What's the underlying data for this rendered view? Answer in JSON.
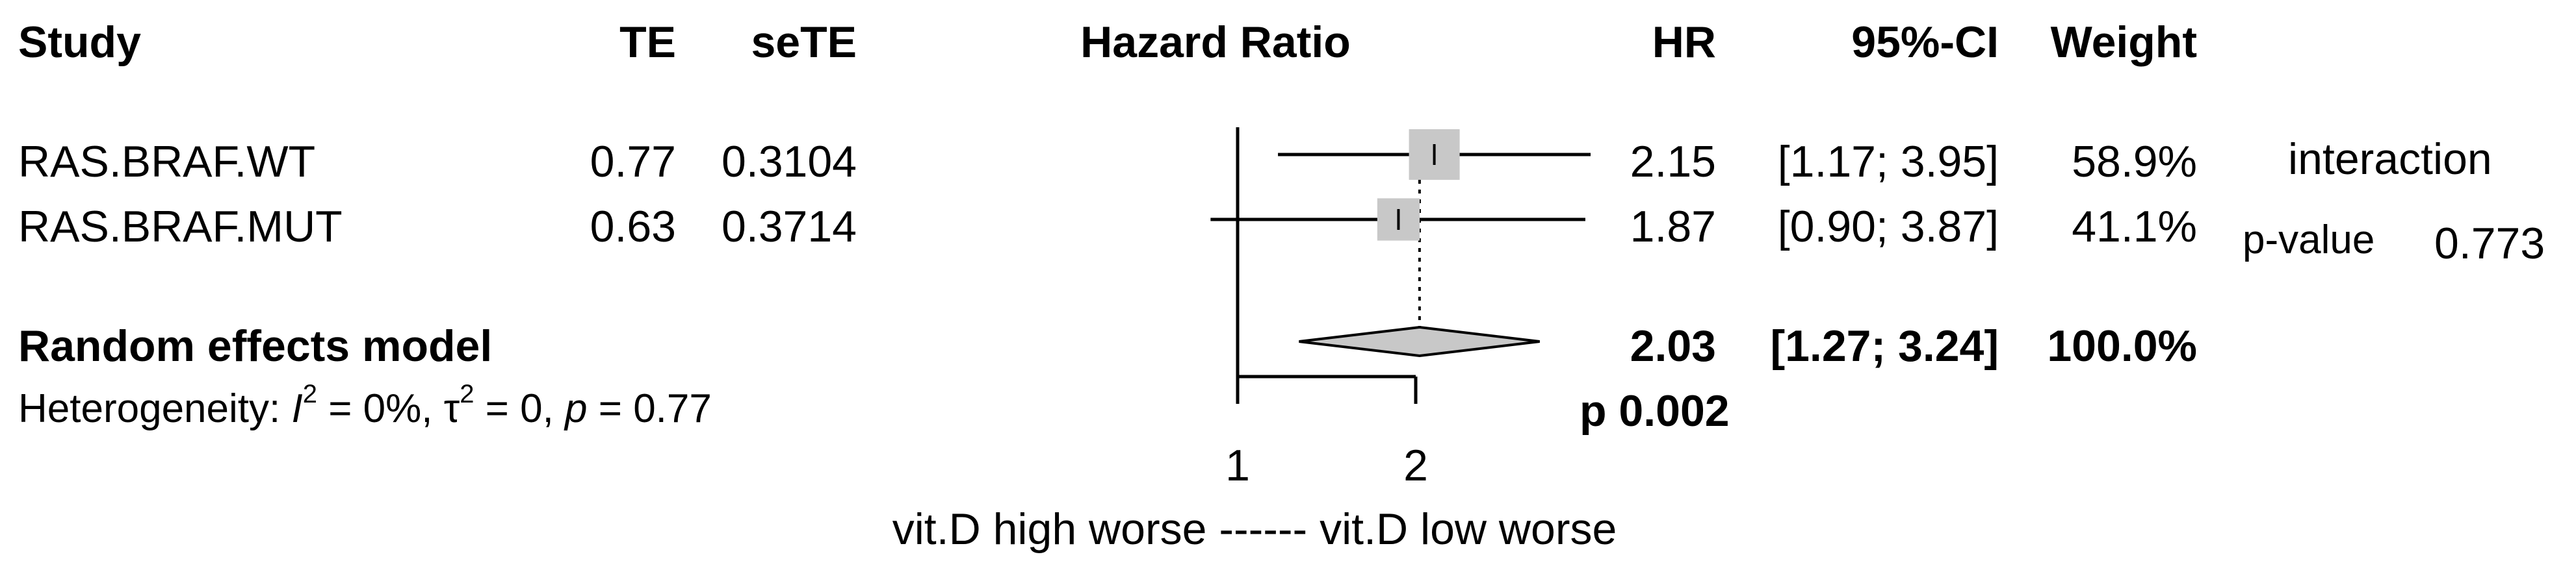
{
  "chart_data": {
    "type": "forest",
    "headers": {
      "study": "Study",
      "te": "TE",
      "sete": "seTE",
      "plot": "Hazard Ratio",
      "hr": "HR",
      "ci": "95%-CI",
      "weight": "Weight"
    },
    "studies": [
      {
        "name": "RAS.BRAF.WT",
        "te": "0.77",
        "sete": "0.3104",
        "hr": 2.15,
        "hr_text": "2.15",
        "ci_low": 1.17,
        "ci_high": 3.95,
        "ci_text": "[1.17; 3.95]",
        "weight": 58.9,
        "weight_text": "58.9%"
      },
      {
        "name": "RAS.BRAF.MUT",
        "te": "0.63",
        "sete": "0.3714",
        "hr": 1.87,
        "hr_text": "1.87",
        "ci_low": 0.9,
        "ci_high": 3.87,
        "ci_text": "[0.90; 3.87]",
        "weight": 41.1,
        "weight_text": "41.1%"
      }
    ],
    "pooled": {
      "name": "Random effects model",
      "hr": 2.03,
      "hr_text": "2.03",
      "ci_low": 1.27,
      "ci_high": 3.24,
      "ci_text": "[1.27; 3.24]",
      "weight_text": "100.0%"
    },
    "heterogeneity": {
      "prefix": "Heterogeneity: ",
      "i2_sym": "I",
      "i2": "= 0%, ",
      "tau_sym": "τ",
      "tau": "= 0, ",
      "p_sym": "p",
      "p": "= 0.77"
    },
    "pooled_p": "p 0.002",
    "axis": {
      "ticks": [
        1,
        2
      ],
      "tick_labels": [
        "1",
        "2"
      ],
      "scale": "log",
      "reference_line": 1,
      "xlim": [
        0.9,
        3.95
      ]
    },
    "xlabel": "vit.D high worse ------ vit.D low worse",
    "interaction": {
      "label": "interaction",
      "p_label": "p-value",
      "p_value": "0.773"
    },
    "colors": {
      "square": "#c8c8c8",
      "diamond": "#c8c8c8",
      "line": "#000000"
    }
  }
}
